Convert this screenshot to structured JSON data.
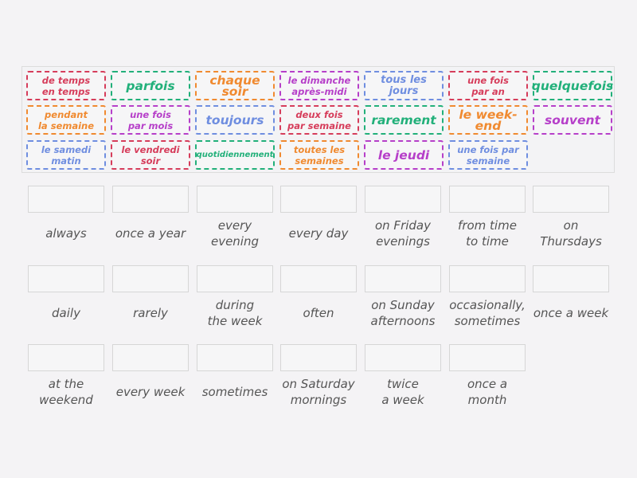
{
  "colors": {
    "red": "#d63d5b",
    "green": "#22b07a",
    "orange": "#f08a30",
    "purple": "#b63fc9",
    "blue": "#6f8ee0",
    "label_text": "#555555"
  },
  "tiles": [
    {
      "text": "de temps\nen temps",
      "color": "red",
      "size": "sm"
    },
    {
      "text": "parfois",
      "color": "green",
      "size": "lg"
    },
    {
      "text": "chaque soir",
      "color": "orange",
      "size": "lg"
    },
    {
      "text": "le dimanche\naprès-midi",
      "color": "purple",
      "size": "sm"
    },
    {
      "text": "tous les jours",
      "color": "blue",
      "size": "md"
    },
    {
      "text": "une fois\npar an",
      "color": "red",
      "size": "sm"
    },
    {
      "text": "quelquefois",
      "color": "green",
      "size": "lg"
    },
    {
      "text": "pendant\nla semaine",
      "color": "orange",
      "size": "sm"
    },
    {
      "text": "une fois\npar mois",
      "color": "purple",
      "size": "sm"
    },
    {
      "text": "toujours",
      "color": "blue",
      "size": "lg"
    },
    {
      "text": "deux fois\npar semaine",
      "color": "red",
      "size": "sm"
    },
    {
      "text": "rarement",
      "color": "green",
      "size": "lg"
    },
    {
      "text": "le week-end",
      "color": "orange",
      "size": "lg"
    },
    {
      "text": "souvent",
      "color": "purple",
      "size": "lg"
    },
    {
      "text": "le samedi\nmatin",
      "color": "blue",
      "size": "sm"
    },
    {
      "text": "le vendredi\nsoir",
      "color": "red",
      "size": "sm"
    },
    {
      "text": "quotidiennement",
      "color": "green",
      "size": "xs"
    },
    {
      "text": "toutes les\nsemaines",
      "color": "orange",
      "size": "sm"
    },
    {
      "text": "le jeudi",
      "color": "purple",
      "size": "lg"
    },
    {
      "text": "une fois par\nsemaine",
      "color": "blue",
      "size": "sm"
    }
  ],
  "targets": [
    {
      "label": "always"
    },
    {
      "label": "once a year"
    },
    {
      "label": "every\nevening"
    },
    {
      "label": "every day"
    },
    {
      "label": "on Friday\nevenings"
    },
    {
      "label": "from time\nto time"
    },
    {
      "label": "on\nThursdays"
    },
    {
      "label": "daily"
    },
    {
      "label": "rarely"
    },
    {
      "label": "during\nthe week"
    },
    {
      "label": "often"
    },
    {
      "label": "on Sunday\nafternoons"
    },
    {
      "label": "occasionally,\nsometimes"
    },
    {
      "label": "once a week"
    },
    {
      "label": "at the\nweekend"
    },
    {
      "label": "every week"
    },
    {
      "label": "sometimes"
    },
    {
      "label": "on Saturday\nmornings"
    },
    {
      "label": "twice\na week"
    },
    {
      "label": "once a\nmonth"
    }
  ]
}
